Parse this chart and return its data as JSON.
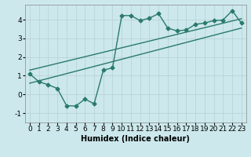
{
  "xlabel": "Humidex (Indice chaleur)",
  "ylabel": "",
  "bg_color": "#cce8ec",
  "grid_color": "#b8d4d8",
  "line_color": "#2a7a6a",
  "xlim": [
    -0.5,
    23.5
  ],
  "ylim": [
    -1.5,
    4.8
  ],
  "x_ticks": [
    0,
    1,
    2,
    3,
    4,
    5,
    6,
    7,
    8,
    9,
    10,
    11,
    12,
    13,
    14,
    15,
    16,
    17,
    18,
    19,
    20,
    21,
    22,
    23
  ],
  "y_ticks": [
    -1,
    0,
    1,
    2,
    3,
    4
  ],
  "curve1_x": [
    0,
    1,
    2,
    3,
    4,
    5,
    6,
    7,
    8,
    9,
    10,
    11,
    12,
    13,
    14,
    15,
    16,
    17,
    18,
    19,
    20,
    21,
    22,
    23
  ],
  "curve1_y": [
    1.1,
    0.68,
    0.52,
    0.32,
    -0.6,
    -0.62,
    -0.25,
    -0.5,
    1.3,
    1.42,
    4.22,
    4.22,
    3.95,
    4.08,
    4.32,
    3.55,
    3.4,
    3.45,
    3.75,
    3.82,
    3.95,
    3.98,
    4.48,
    3.82
  ],
  "line1_x": [
    0,
    23
  ],
  "line1_y": [
    0.6,
    3.55
  ],
  "line2_x": [
    0,
    23
  ],
  "line2_y": [
    1.3,
    4.05
  ],
  "marker": "D",
  "marker_size": 2.5,
  "linewidth": 1.0,
  "font_size_label": 7,
  "font_size_tick": 6.5
}
